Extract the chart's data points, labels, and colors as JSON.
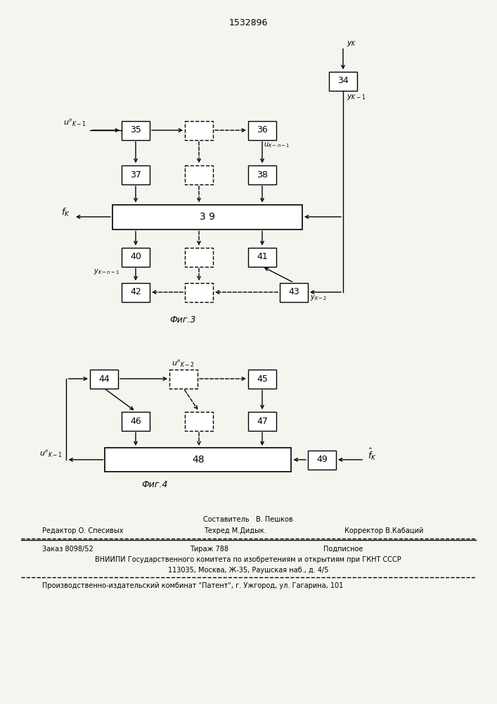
{
  "title": "1532896",
  "bg_color": "#f5f5f0",
  "fig3_label": "Фиг.3",
  "fig4_label": "Фиг.4",
  "footer_line0": "Составитель   В. Пешков",
  "footer_line1a": "Редактор О. Спесивых",
  "footer_line1b": "Техред М.Дидык.",
  "footer_line1c": "Корректор В.Кабаций",
  "footer_line2a": "Заказ 8098/52",
  "footer_line2b": "Тираж 788",
  "footer_line2c": "Подписное",
  "footer_line3": "ВНИИПИ Государственного комитета по изобретениям и открытиям при ГКНТ СССР",
  "footer_line4": "113035, Москва, Ж-35, Раушская наб., д. 4/5",
  "footer_line5": "Производственно-издательский комбинат \"Патент\", г. Ужгород, ул. Гагарина, 101"
}
